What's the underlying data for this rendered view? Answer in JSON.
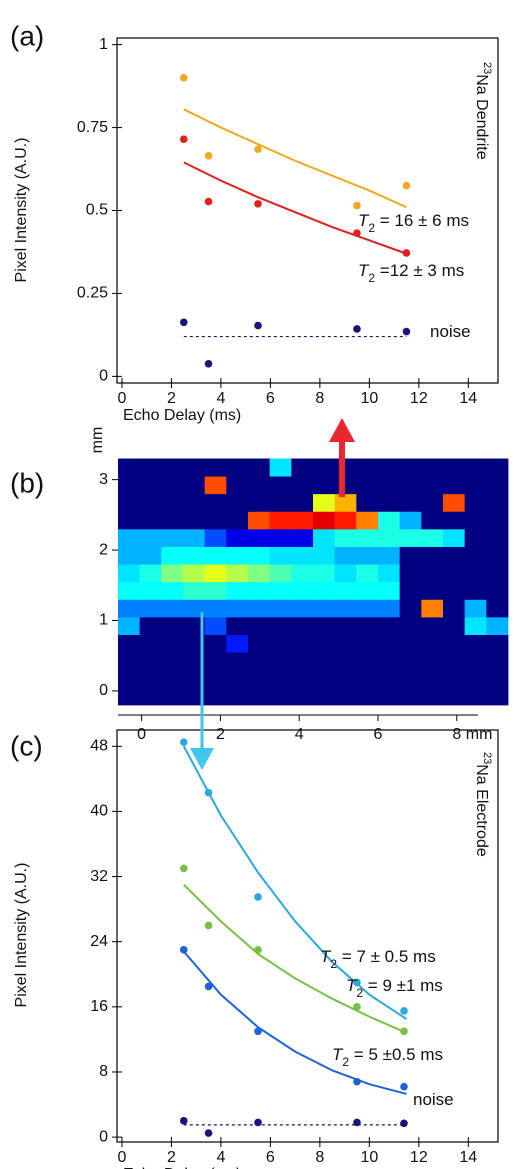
{
  "chart_data": [
    {
      "type": "scatter",
      "panel_label": "(a)",
      "x_label": "Echo Delay (ms)",
      "y_label": "Pixel Intensity (A.U.)",
      "xlim": [
        -0.2,
        15.2
      ],
      "xticks": [
        0,
        2,
        4,
        6,
        8,
        10,
        12,
        14
      ],
      "ylim": [
        -0.02,
        1.02
      ],
      "yticks": [
        0,
        0.25,
        0.5,
        0.75,
        1
      ],
      "series": [
        {
          "style": "points",
          "color": "#f0a81e",
          "x": [
            2.5,
            3.5,
            5.5,
            9.5,
            11.5
          ],
          "values": [
            0.9,
            0.665,
            0.685,
            0.515,
            0.575
          ]
        },
        {
          "style": "line",
          "color": "#f0a81e",
          "x": [
            2.5,
            4,
            5.5,
            7,
            8.5,
            10,
            11.5
          ],
          "values": [
            0.805,
            0.75,
            0.7,
            0.65,
            0.605,
            0.56,
            0.51
          ]
        },
        {
          "style": "points",
          "color": "#e0201c",
          "x": [
            2.5,
            3.5,
            5.5,
            9.5,
            11.5
          ],
          "values": [
            0.715,
            0.527,
            0.52,
            0.432,
            0.372
          ]
        },
        {
          "style": "line",
          "color": "#e0201c",
          "x": [
            2.5,
            4,
            5.5,
            7,
            8.5,
            10,
            11.5
          ],
          "values": [
            0.645,
            0.59,
            0.54,
            0.495,
            0.45,
            0.41,
            0.37
          ]
        },
        {
          "style": "points",
          "color": "#15157a",
          "x": [
            2.5,
            3.5,
            5.5,
            9.5,
            11.5
          ],
          "values": [
            0.163,
            0.038,
            0.153,
            0.143,
            0.135
          ]
        },
        {
          "style": "line",
          "dash": true,
          "color": "#15157a",
          "x": [
            2.5,
            11.5
          ],
          "values": [
            0.12,
            0.12
          ]
        }
      ],
      "annotations": [
        {
          "italic": "T",
          "sub": "2",
          "text": " = 16 ± 6 ms",
          "color": "#f0a81e"
        },
        {
          "italic": "T",
          "sub": "2",
          "text": " =12 ± 3 ms",
          "color": "#e0201c"
        },
        {
          "text": "noise",
          "color": "#15157a"
        }
      ],
      "side_label": {
        "sup": "23",
        "text": "Na Dendrite"
      }
    },
    {
      "type": "heatmap",
      "panel_label": "(b)",
      "x_unit": "mm",
      "y_unit": "mm",
      "xlim": [
        -0.6,
        9.3
      ],
      "xticks": [
        0,
        2,
        4,
        6,
        8
      ],
      "ylim": [
        -0.2,
        3.35
      ],
      "yticks": [
        0,
        1,
        2,
        3
      ],
      "x": [
        -0.325,
        0.225,
        0.775,
        1.325,
        1.875,
        2.425,
        2.975,
        3.525,
        4.075,
        4.625,
        5.175,
        5.725,
        6.275,
        6.825,
        7.375,
        7.925,
        8.475,
        9.025
      ],
      "y": [
        -0.075,
        0.175,
        0.425,
        0.675,
        0.925,
        1.175,
        1.425,
        1.675,
        1.925,
        2.175,
        2.425,
        2.675,
        2.925,
        3.175
      ],
      "values": [
        [
          0,
          0,
          0,
          0,
          0,
          0,
          0,
          0,
          0,
          0,
          0,
          0,
          0,
          0,
          0,
          0,
          0,
          0
        ],
        [
          0,
          0,
          0,
          0,
          0,
          0,
          0,
          0,
          0,
          0,
          0,
          0,
          0,
          0,
          0,
          0,
          0,
          0
        ],
        [
          0,
          0,
          0,
          0,
          0,
          0,
          0,
          0,
          0,
          0,
          0,
          0,
          0,
          0,
          0,
          0,
          0,
          0
        ],
        [
          0,
          0,
          0,
          0,
          0,
          0.15,
          0,
          0,
          0,
          0,
          0,
          0,
          0,
          0,
          0,
          0,
          0,
          0
        ],
        [
          0.3,
          0,
          0,
          0,
          0.2,
          0,
          0,
          0,
          0,
          0,
          0,
          0,
          0,
          0,
          0,
          0,
          0.35,
          0.3
        ],
        [
          0.25,
          0.25,
          0.25,
          0.25,
          0.25,
          0.25,
          0.25,
          0.25,
          0.25,
          0.25,
          0.25,
          0.25,
          0.25,
          0,
          0.75,
          0,
          0.3,
          0
        ],
        [
          0.38,
          0.38,
          0.38,
          0.42,
          0.42,
          0.38,
          0.38,
          0.38,
          0.38,
          0.38,
          0.38,
          0.38,
          0.38,
          0,
          0,
          0,
          0,
          0
        ],
        [
          0.35,
          0.4,
          0.5,
          0.55,
          0.6,
          0.55,
          0.5,
          0.45,
          0.4,
          0.4,
          0.35,
          0.4,
          0.35,
          0,
          0,
          0,
          0,
          0
        ],
        [
          0.3,
          0.3,
          0.38,
          0.38,
          0.38,
          0.38,
          0.38,
          0.35,
          0.35,
          0.35,
          0.3,
          0.3,
          0.3,
          0,
          0,
          0,
          0,
          0
        ],
        [
          0.3,
          0.3,
          0.3,
          0.3,
          0.2,
          0.1,
          0.1,
          0.1,
          0.1,
          0.35,
          0.4,
          0.4,
          0.4,
          0.4,
          0.4,
          0.35,
          0,
          0
        ],
        [
          0,
          0,
          0,
          0,
          0,
          0,
          0.8,
          0.85,
          0.85,
          0.9,
          0.85,
          0.75,
          0.4,
          0.3,
          0,
          0,
          0,
          0
        ],
        [
          0,
          0,
          0,
          0,
          0,
          0,
          0,
          0,
          0,
          0.6,
          0.7,
          0,
          0,
          0,
          0,
          0.8,
          0,
          0
        ],
        [
          0,
          0,
          0,
          0,
          0.8,
          0,
          0,
          0,
          0,
          0,
          0,
          0,
          0,
          0,
          0,
          0,
          0,
          0
        ],
        [
          0,
          0,
          0,
          0,
          0,
          0,
          0,
          0.35,
          0,
          0,
          0,
          0,
          0,
          0,
          0,
          0,
          0,
          0
        ]
      ]
    },
    {
      "type": "scatter",
      "panel_label": "(c)",
      "x_label": "Echo Delay (ms)",
      "y_label": "Pixel Intensity (A.U.)",
      "xlim": [
        -0.2,
        15.2
      ],
      "xticks": [
        0,
        2,
        4,
        6,
        8,
        10,
        12,
        14
      ],
      "ylim": [
        -0.6,
        50
      ],
      "yticks": [
        0,
        8,
        16,
        24,
        32,
        40,
        48
      ],
      "series": [
        {
          "style": "points",
          "color": "#2aa8de",
          "x": [
            2.5,
            3.5,
            5.5,
            9.5,
            11.4
          ],
          "values": [
            48.5,
            42.3,
            29.5,
            19,
            15.5
          ]
        },
        {
          "style": "line",
          "color": "#2aa8de",
          "x": [
            2.5,
            4,
            5.5,
            7,
            8.5,
            10,
            11.5
          ],
          "values": [
            48,
            39.5,
            32.5,
            26.5,
            21.5,
            17.5,
            14.5
          ]
        },
        {
          "style": "points",
          "color": "#78c043",
          "x": [
            2.5,
            3.5,
            5.5,
            9.5,
            11.4
          ],
          "values": [
            33,
            26,
            23,
            16,
            13
          ]
        },
        {
          "style": "line",
          "color": "#78c043",
          "x": [
            2.5,
            4,
            5.5,
            7,
            8.5,
            10,
            11.5
          ],
          "values": [
            31,
            26.5,
            22.5,
            19.5,
            17,
            14.8,
            12.8
          ]
        },
        {
          "style": "points",
          "color": "#1d63d8",
          "x": [
            2.5,
            3.5,
            5.5,
            9.5,
            11.4
          ],
          "values": [
            23,
            18.5,
            13,
            6.8,
            6.2
          ]
        },
        {
          "style": "line",
          "color": "#1d63d8",
          "x": [
            2.5,
            4,
            5.5,
            7,
            8.5,
            10,
            11.5
          ],
          "values": [
            22.8,
            17.5,
            13.5,
            10.5,
            8.2,
            6.5,
            5.3
          ]
        },
        {
          "style": "points",
          "color": "#15157a",
          "x": [
            2.5,
            3.5,
            5.5,
            9.5,
            11.4
          ],
          "values": [
            2,
            0.5,
            1.8,
            1.8,
            1.7
          ]
        },
        {
          "style": "line",
          "dash": true,
          "color": "#15157a",
          "x": [
            2.5,
            11.5
          ],
          "values": [
            1.5,
            1.5
          ]
        }
      ],
      "annotations": [
        {
          "italic": "T",
          "sub": "2",
          "text": " = 7 ± 0.5 ms",
          "color": "#2aa8de"
        },
        {
          "italic": "T",
          "sub": "2",
          "text": " = 9 ±1 ms",
          "color": "#78c043"
        },
        {
          "italic": "T",
          "sub": "2",
          "text": " = 5 ±0.5 ms",
          "color": "#1d63d8"
        },
        {
          "text": "noise",
          "color": "#15157a"
        }
      ],
      "side_label": {
        "sup": "23",
        "text": "Na Electrode"
      }
    }
  ]
}
